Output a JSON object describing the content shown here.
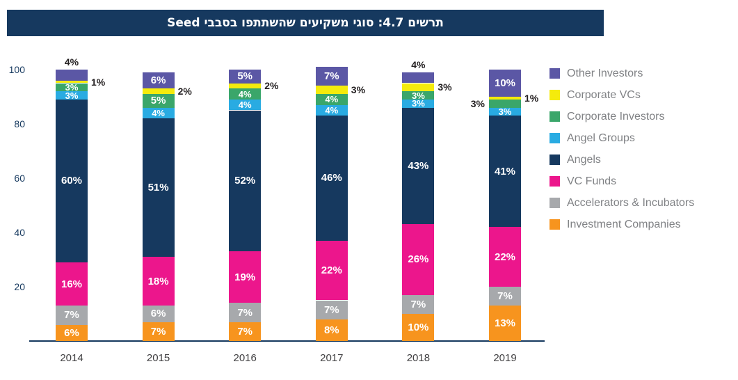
{
  "title": {
    "text": "תרשים 4.7: סוגי משקיעים שהשתתפו בסבבי Seed",
    "bg_color": "#16395F",
    "text_color": "#FFFFFF"
  },
  "chart_data": {
    "type": "bar",
    "subtype": "stacked",
    "title": "תרשים 4.7: סוגי משקיעים שהשתתפו בסבבי Seed",
    "categories": [
      "2014",
      "2015",
      "2016",
      "2017",
      "2018",
      "2019"
    ],
    "unit": "%",
    "ylim": [
      0,
      100
    ],
    "yticks": [
      100,
      80,
      60,
      40,
      20
    ],
    "grid": false,
    "legend_position": "right",
    "series": [
      {
        "name": "Investment Companies",
        "color": "#F7941E",
        "values": [
          6,
          7,
          7,
          8,
          10,
          13
        ],
        "label_placement": [
          "inside",
          "inside",
          "inside",
          "inside",
          "inside",
          "inside"
        ]
      },
      {
        "name": "Accelerators & Incubators",
        "color": "#A7A9AC",
        "values": [
          7,
          6,
          7,
          7,
          7,
          7
        ],
        "label_placement": [
          "inside",
          "inside",
          "inside",
          "inside",
          "inside",
          "inside"
        ]
      },
      {
        "name": "VC Funds",
        "color": "#EC168C",
        "values": [
          16,
          18,
          19,
          22,
          26,
          22
        ],
        "label_placement": [
          "inside",
          "inside",
          "inside",
          "inside",
          "inside",
          "inside"
        ]
      },
      {
        "name": "Angels",
        "color": "#16395F",
        "values": [
          60,
          51,
          52,
          46,
          43,
          41
        ],
        "label_placement": [
          "inside",
          "inside",
          "inside",
          "inside",
          "inside",
          "inside"
        ]
      },
      {
        "name": "Angel Groups",
        "color": "#29ABE2",
        "values": [
          3,
          4,
          4,
          4,
          3,
          3
        ],
        "label_placement": [
          "inside",
          "inside",
          "inside",
          "inside",
          "inside",
          "inside"
        ]
      },
      {
        "name": "Corporate Investors",
        "color": "#3AA66A",
        "values": [
          3,
          5,
          4,
          4,
          3,
          3
        ],
        "label_placement": [
          "inside",
          "inside",
          "inside",
          "inside",
          "inside",
          "left"
        ]
      },
      {
        "name": "Corporate VCs",
        "color": "#F5EB0C",
        "values": [
          1,
          2,
          2,
          3,
          3,
          1
        ],
        "label_placement": [
          "right",
          "right",
          "right",
          "right",
          "right",
          "right"
        ]
      },
      {
        "name": "Other Investors",
        "color": "#5B57A5",
        "values": [
          4,
          6,
          5,
          7,
          4,
          10
        ],
        "label_placement": [
          "above",
          "inside",
          "inside",
          "inside",
          "above",
          "inside"
        ]
      }
    ]
  },
  "colors": {
    "axis": "#16395F",
    "tick_label": "#16395F",
    "category_label": "#414042",
    "legend_text": "#808285",
    "outside_label": "#231F20"
  }
}
